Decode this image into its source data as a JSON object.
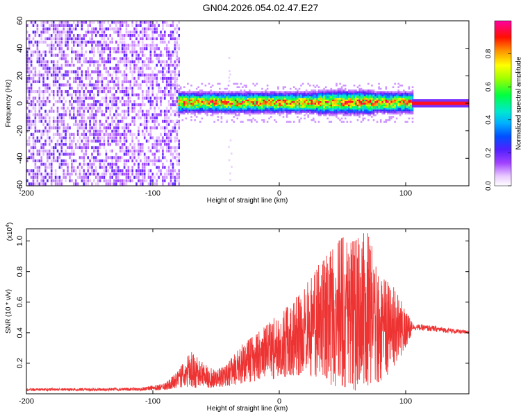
{
  "title": "GN04.2026.054.02.47.E27",
  "chart_data": [
    {
      "type": "heatmap",
      "name": "spectrogram",
      "xlabel": "Height of straight line (km)",
      "ylabel": "Frequency (Hz)",
      "xlim": [
        -200,
        150
      ],
      "ylim": [
        -60,
        60
      ],
      "xticks": [
        -200,
        -100,
        0,
        100
      ],
      "yticks": [
        -60,
        -40,
        -20,
        0,
        20,
        40,
        60
      ],
      "noise_region_x": [
        -200,
        -80
      ],
      "signal_region_x": [
        -80,
        105
      ],
      "steady_line_x": [
        105,
        150
      ],
      "signal_center_hz": 0,
      "colorbar": {
        "label": "Normalized spectral amplitude",
        "range": [
          0.0,
          1.0
        ],
        "ticks": [
          0.0,
          0.2,
          0.4,
          0.6,
          0.8
        ]
      }
    },
    {
      "type": "line",
      "name": "snr",
      "xlabel": "Height of straight line (km)",
      "ylabel": "SNR (10 * v/v)",
      "multiplier_label": "(x10",
      "multiplier_exp": "4",
      "multiplier_close": ")",
      "xlim": [
        -200,
        150
      ],
      "ylim": [
        0.0,
        1.08
      ],
      "xticks": [
        -200,
        -100,
        0,
        100
      ],
      "yticks": [
        0.2,
        0.4,
        0.6,
        0.8,
        1.0
      ],
      "color": "#ee3333",
      "envelope_x": [
        -200,
        -110,
        -90,
        -80,
        -70,
        -60,
        -50,
        -40,
        -30,
        -20,
        -10,
        0,
        10,
        20,
        30,
        40,
        50,
        60,
        70,
        80,
        90,
        100,
        105,
        120,
        150
      ],
      "envelope_upper": [
        0.035,
        0.04,
        0.07,
        0.15,
        0.28,
        0.2,
        0.15,
        0.21,
        0.32,
        0.38,
        0.45,
        0.53,
        0.6,
        0.7,
        0.84,
        0.93,
        1.03,
        1.0,
        1.08,
        0.76,
        0.72,
        0.55,
        0.47,
        0.46,
        0.42
      ],
      "envelope_lower": [
        0.02,
        0.02,
        0.025,
        0.04,
        0.04,
        0.035,
        0.04,
        0.05,
        0.06,
        0.08,
        0.09,
        0.1,
        0.12,
        0.12,
        0.1,
        0.05,
        0.05,
        0.02,
        0.05,
        0.08,
        0.15,
        0.3,
        0.39,
        0.38,
        0.37
      ]
    }
  ]
}
